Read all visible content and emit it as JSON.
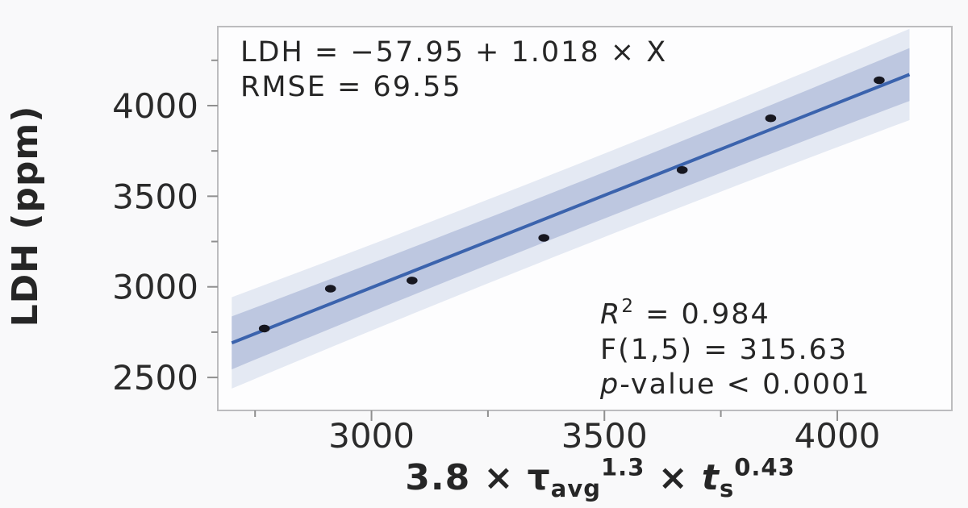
{
  "figure": {
    "background": "#f9f9fa",
    "plot_background": "#fdfdfe",
    "frame_color": "#bcbcbe",
    "tick_color": "#8f8f8f",
    "text_color": "#262626"
  },
  "chart_data": {
    "type": "scatter",
    "title": "",
    "ylabel": "LDH (ppm)",
    "xlabel_text": "3.8 × τ_avg^1.3 × t_s^0.43",
    "xlabel_segments": [
      {
        "t": "3.8 × τ"
      },
      {
        "t": "avg",
        "v": "sub"
      },
      {
        "t": "1.3",
        "v": "sup"
      },
      {
        "t": " × "
      },
      {
        "t": "t",
        "i": true
      },
      {
        "t": "s",
        "v": "sub"
      },
      {
        "t": "0.43",
        "v": "sup"
      }
    ],
    "xlim": [
      2670,
      4246
    ],
    "ylim": [
      2318,
      4436
    ],
    "x_major_ticks": [
      3000,
      3500,
      4000
    ],
    "x_minor_ticks": [
      2750,
      3250,
      3750
    ],
    "y_major_ticks": [
      2500,
      3000,
      3500,
      4000
    ],
    "y_minor_ticks": [
      2750,
      3250,
      3750,
      4250
    ],
    "grid": false,
    "points": [
      [
        2770,
        2770
      ],
      [
        2912,
        2990
      ],
      [
        3087,
        3035
      ],
      [
        3370,
        3270
      ],
      [
        3667,
        3645
      ],
      [
        3857,
        3930
      ],
      [
        4090,
        4140
      ]
    ],
    "regression": {
      "intercept": -57.95,
      "slope": 1.018,
      "x_range": [
        2700,
        4155
      ]
    },
    "bands": {
      "inner_halfwidth": 128,
      "inner_end_flare": 18,
      "outer_halfwidth": 230,
      "outer_end_flare": 22
    },
    "colors": {
      "line": "#3b63ad",
      "inner_band": "#bdc7e0",
      "outer_band": "#e4e9f3",
      "point": "#171720"
    },
    "annotations": {
      "equation": "LDH = −57.95 + 1.018 × X",
      "rmse": "RMSE = 69.55",
      "stats": [
        {
          "text": "R² = 0.984",
          "segments": [
            {
              "t": "R",
              "i": true
            },
            {
              "t": "2",
              "v": "sup"
            },
            {
              "t": " = 0.984"
            }
          ]
        },
        {
          "text": "F(1,5) = 315.63",
          "segments": [
            {
              "t": "F(1,5) = 315.63"
            }
          ]
        },
        {
          "text": "p-value < 0.0001",
          "segments": [
            {
              "t": "p",
              "i": true
            },
            {
              "t": "-value < 0.0001"
            }
          ]
        }
      ]
    }
  }
}
